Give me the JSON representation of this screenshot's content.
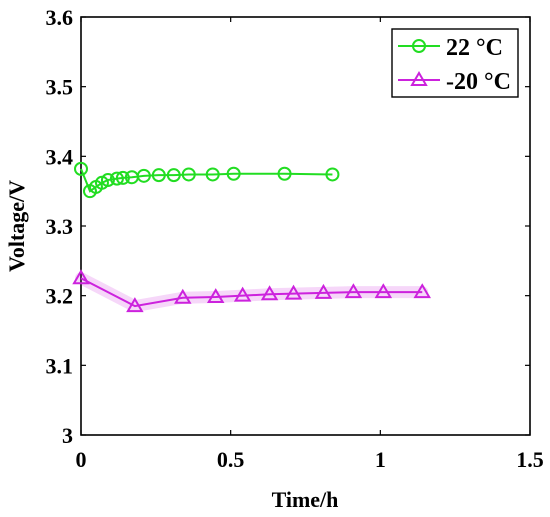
{
  "chart_data": {
    "type": "line",
    "title": "",
    "xlabel": "Time/h",
    "ylabel": "Voltage/V",
    "xlim": [
      0,
      1.5
    ],
    "ylim": [
      3.0,
      3.6
    ],
    "xticks": [
      0,
      0.5,
      1,
      1.5
    ],
    "xtick_labels": [
      "0",
      "0.5",
      "1",
      "1.5"
    ],
    "yticks": [
      3.0,
      3.1,
      3.2,
      3.3,
      3.4,
      3.5,
      3.6
    ],
    "ytick_labels": [
      "3",
      "3.1",
      "3.2",
      "3.3",
      "3.4",
      "3.5",
      "3.6"
    ],
    "grid": false,
    "legend_position": "top-right",
    "series": [
      {
        "name": "22 °C",
        "color": "#22dd22",
        "marker": "circle",
        "x": [
          0.0,
          0.03,
          0.05,
          0.07,
          0.09,
          0.12,
          0.14,
          0.17,
          0.21,
          0.26,
          0.31,
          0.36,
          0.44,
          0.51,
          0.68,
          0.84
        ],
        "y": [
          3.382,
          3.35,
          3.356,
          3.362,
          3.366,
          3.368,
          3.369,
          3.37,
          3.372,
          3.373,
          3.373,
          3.374,
          3.374,
          3.375,
          3.375,
          3.374
        ]
      },
      {
        "name": "-20 °C",
        "color": "#cc22dd",
        "marker": "triangle",
        "x": [
          0.0,
          0.18,
          0.34,
          0.45,
          0.54,
          0.63,
          0.71,
          0.81,
          0.91,
          1.01,
          1.14
        ],
        "y": [
          3.225,
          3.185,
          3.197,
          3.198,
          3.2,
          3.202,
          3.203,
          3.204,
          3.205,
          3.205,
          3.205
        ]
      }
    ]
  }
}
